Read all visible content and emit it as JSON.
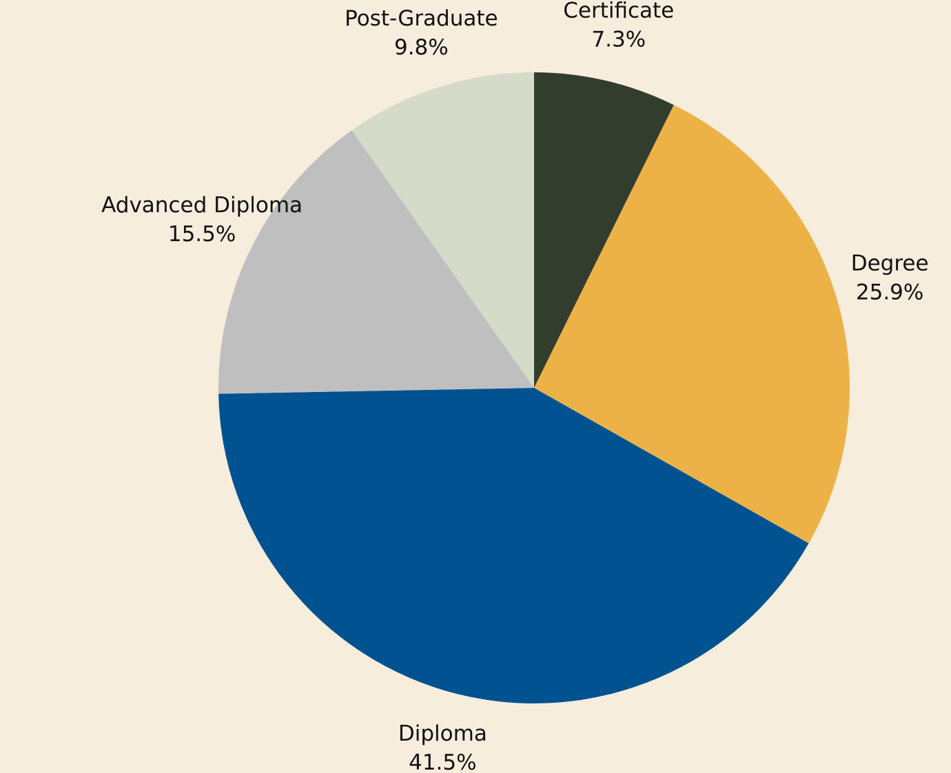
{
  "chart_data": {
    "type": "pie",
    "categories": [
      "Certificate",
      "Degree",
      "Diploma",
      "Advanced Diploma",
      "Post-Graduate"
    ],
    "values": [
      7.3,
      25.9,
      41.5,
      15.5,
      9.8
    ],
    "value_labels": [
      "7.3%",
      "25.9%",
      "41.5%",
      "15.5%",
      "9.8%"
    ],
    "colors": [
      "#333d2e",
      "#ecb247",
      "#005291",
      "#bfbfbf",
      "#d5dac9"
    ]
  }
}
